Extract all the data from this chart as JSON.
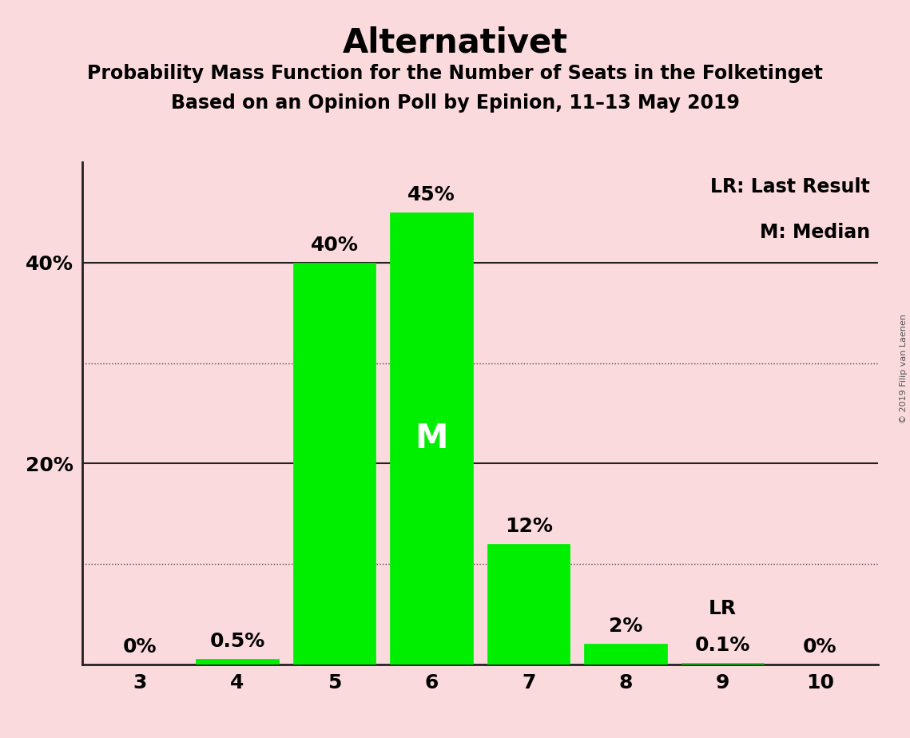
{
  "title": "Alternativet",
  "subtitle1": "Probability Mass Function for the Number of Seats in the Folketinget",
  "subtitle2": "Based on an Opinion Poll by Epinion, 11–13 May 2019",
  "copyright": "© 2019 Filip van Laenen",
  "categories": [
    3,
    4,
    5,
    6,
    7,
    8,
    9,
    10
  ],
  "values": [
    0.0,
    0.5,
    40.0,
    45.0,
    12.0,
    2.0,
    0.1,
    0.0
  ],
  "bar_color": "#00ee00",
  "background_color": "#fadadd",
  "ylim": [
    0,
    50
  ],
  "solid_gridlines": [
    20,
    40
  ],
  "dotted_gridlines": [
    10,
    30
  ],
  "median_seat": 6,
  "median_label": "M",
  "lr_seat": 9,
  "lr_label": "LR",
  "legend_lr": "LR: Last Result",
  "legend_m": "M: Median",
  "bar_labels": [
    "0%",
    "0.5%",
    "40%",
    "45%",
    "12%",
    "2%",
    "0.1%",
    "0%"
  ],
  "title_fontsize": 30,
  "subtitle_fontsize": 17,
  "label_fontsize": 18,
  "tick_fontsize": 18,
  "legend_fontsize": 17,
  "median_fontsize": 30,
  "copyright_fontsize": 8
}
